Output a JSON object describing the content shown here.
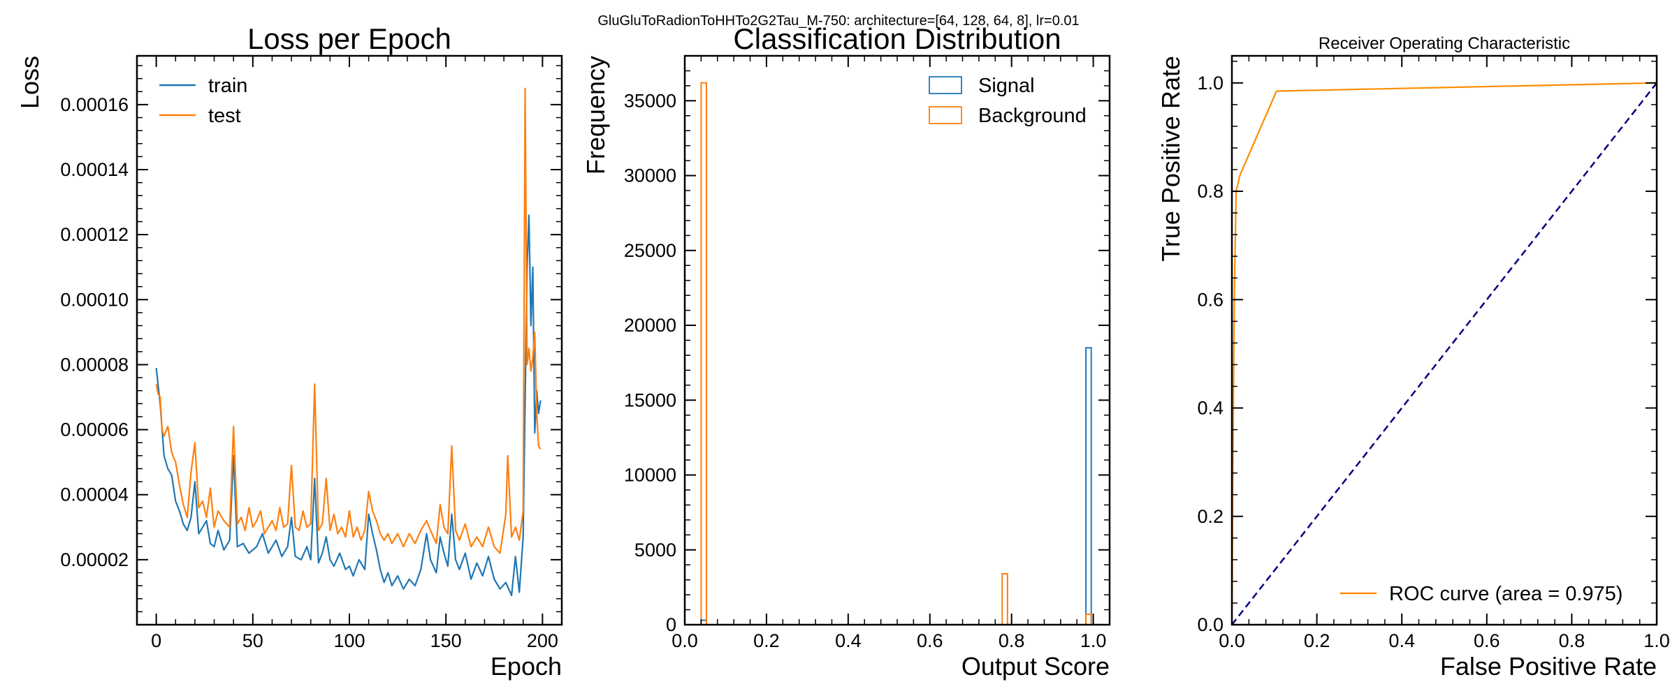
{
  "figure": {
    "suptitle": "GluGluToRadionToHHTo2G2Tau_M-750: architecture=[64, 128, 64, 8], lr=0.01"
  },
  "chart_data": [
    {
      "type": "line",
      "title": "Loss per Epoch",
      "xlabel": "Epoch",
      "ylabel": "Loss",
      "xlim": [
        -10,
        210
      ],
      "ylim": [
        0.0,
        0.000175
      ],
      "xticks": [
        0,
        50,
        100,
        150,
        200
      ],
      "xtick_labels": [
        "0",
        "50",
        "100",
        "150",
        "200"
      ],
      "yticks": [
        2e-05,
        4e-05,
        6e-05,
        8e-05,
        0.0001,
        0.00012,
        0.00014,
        0.00016
      ],
      "ytick_labels": [
        "0.00002",
        "0.00004",
        "0.00006",
        "0.00008",
        "0.00010",
        "0.00012",
        "0.00014",
        "0.00016"
      ],
      "legend": "top-left",
      "series": [
        {
          "name": "train",
          "color": "#1f77b4",
          "points": [
            [
              0,
              7.9e-05
            ],
            [
              2,
              6.8e-05
            ],
            [
              4,
              5.2e-05
            ],
            [
              6,
              4.8e-05
            ],
            [
              8,
              4.6e-05
            ],
            [
              10,
              3.8e-05
            ],
            [
              12,
              3.5e-05
            ],
            [
              14,
              3.1e-05
            ],
            [
              16,
              2.9e-05
            ],
            [
              18,
              3.3e-05
            ],
            [
              20,
              4.4e-05
            ],
            [
              22,
              2.8e-05
            ],
            [
              24,
              3e-05
            ],
            [
              26,
              3.2e-05
            ],
            [
              28,
              2.5e-05
            ],
            [
              30,
              2.4e-05
            ],
            [
              32,
              2.9e-05
            ],
            [
              35,
              2.3e-05
            ],
            [
              38,
              2.6e-05
            ],
            [
              40,
              5.2e-05
            ],
            [
              42,
              2.4e-05
            ],
            [
              45,
              2.5e-05
            ],
            [
              48,
              2.2e-05
            ],
            [
              52,
              2.4e-05
            ],
            [
              55,
              2.8e-05
            ],
            [
              58,
              2.2e-05
            ],
            [
              62,
              2.6e-05
            ],
            [
              65,
              2.1e-05
            ],
            [
              68,
              2.4e-05
            ],
            [
              70,
              3.3e-05
            ],
            [
              72,
              2.1e-05
            ],
            [
              75,
              2e-05
            ],
            [
              78,
              2.4e-05
            ],
            [
              80,
              2e-05
            ],
            [
              82,
              4.5e-05
            ],
            [
              84,
              1.9e-05
            ],
            [
              86,
              2.2e-05
            ],
            [
              88,
              2.7e-05
            ],
            [
              90,
              2e-05
            ],
            [
              92,
              1.8e-05
            ],
            [
              95,
              2.2e-05
            ],
            [
              98,
              1.7e-05
            ],
            [
              100,
              1.8e-05
            ],
            [
              102,
              1.5e-05
            ],
            [
              105,
              2e-05
            ],
            [
              108,
              1.7e-05
            ],
            [
              110,
              3.4e-05
            ],
            [
              112,
              2.8e-05
            ],
            [
              114,
              2.3e-05
            ],
            [
              116,
              1.7e-05
            ],
            [
              118,
              1.3e-05
            ],
            [
              120,
              1.6e-05
            ],
            [
              122,
              1.2e-05
            ],
            [
              125,
              1.5e-05
            ],
            [
              128,
              1.1e-05
            ],
            [
              131,
              1.4e-05
            ],
            [
              134,
              1.2e-05
            ],
            [
              137,
              1.7e-05
            ],
            [
              140,
              2.8e-05
            ],
            [
              142,
              2e-05
            ],
            [
              145,
              1.6e-05
            ],
            [
              147,
              2.7e-05
            ],
            [
              149,
              2.2e-05
            ],
            [
              151,
              1.8e-05
            ],
            [
              153,
              3.4e-05
            ],
            [
              155,
              2e-05
            ],
            [
              157,
              1.7e-05
            ],
            [
              160,
              2.2e-05
            ],
            [
              163,
              1.4e-05
            ],
            [
              166,
              1.9e-05
            ],
            [
              169,
              1.5e-05
            ],
            [
              172,
              2.1e-05
            ],
            [
              175,
              1.4e-05
            ],
            [
              178,
              1.1e-05
            ],
            [
              181,
              1.3e-05
            ],
            [
              184,
              9e-06
            ],
            [
              186,
              2.1e-05
            ],
            [
              188,
              1e-05
            ],
            [
              190,
              2.7e-05
            ],
            [
              192,
              0.00011
            ],
            [
              193,
              0.000126
            ],
            [
              194,
              9.2e-05
            ],
            [
              195,
              0.00011
            ],
            [
              196,
              5.9e-05
            ],
            [
              197,
              7.2e-05
            ],
            [
              198,
              6.5e-05
            ],
            [
              199,
              6.9e-05
            ]
          ]
        },
        {
          "name": "test",
          "color": "#ff7f0e",
          "points": [
            [
              0,
              7.4e-05
            ],
            [
              1,
              7.1e-05
            ],
            [
              2,
              7e-05
            ],
            [
              3,
              6e-05
            ],
            [
              4,
              5.8e-05
            ],
            [
              6,
              6.1e-05
            ],
            [
              8,
              5.3e-05
            ],
            [
              10,
              5e-05
            ],
            [
              12,
              4.3e-05
            ],
            [
              14,
              3.7e-05
            ],
            [
              16,
              3.3e-05
            ],
            [
              18,
              4.7e-05
            ],
            [
              20,
              5.6e-05
            ],
            [
              22,
              3.6e-05
            ],
            [
              24,
              3.8e-05
            ],
            [
              26,
              3.3e-05
            ],
            [
              28,
              4.2e-05
            ],
            [
              30,
              3e-05
            ],
            [
              32,
              3.5e-05
            ],
            [
              35,
              3.2e-05
            ],
            [
              38,
              3e-05
            ],
            [
              40,
              6.1e-05
            ],
            [
              42,
              3.1e-05
            ],
            [
              44,
              3.3e-05
            ],
            [
              46,
              2.9e-05
            ],
            [
              48,
              3.6e-05
            ],
            [
              50,
              3e-05
            ],
            [
              52,
              3.2e-05
            ],
            [
              54,
              3.5e-05
            ],
            [
              56,
              2.8e-05
            ],
            [
              58,
              3e-05
            ],
            [
              60,
              3.2e-05
            ],
            [
              62,
              2.9e-05
            ],
            [
              64,
              3.6e-05
            ],
            [
              66,
              3e-05
            ],
            [
              68,
              3.1e-05
            ],
            [
              70,
              4.9e-05
            ],
            [
              72,
              3e-05
            ],
            [
              74,
              2.9e-05
            ],
            [
              76,
              3.5e-05
            ],
            [
              78,
              3e-05
            ],
            [
              80,
              3.1e-05
            ],
            [
              82,
              7.4e-05
            ],
            [
              84,
              2.9e-05
            ],
            [
              86,
              3.1e-05
            ],
            [
              88,
              4.5e-05
            ],
            [
              90,
              2.9e-05
            ],
            [
              92,
              3.4e-05
            ],
            [
              94,
              2.8e-05
            ],
            [
              96,
              3e-05
            ],
            [
              98,
              2.7e-05
            ],
            [
              100,
              3.5e-05
            ],
            [
              102,
              2.7e-05
            ],
            [
              104,
              3e-05
            ],
            [
              106,
              2.6e-05
            ],
            [
              108,
              2.9e-05
            ],
            [
              110,
              4.1e-05
            ],
            [
              112,
              3.5e-05
            ],
            [
              114,
              3.2e-05
            ],
            [
              116,
              2.8e-05
            ],
            [
              118,
              2.6e-05
            ],
            [
              120,
              2.8e-05
            ],
            [
              122,
              2.5e-05
            ],
            [
              125,
              2.8e-05
            ],
            [
              128,
              2.4e-05
            ],
            [
              131,
              2.8e-05
            ],
            [
              134,
              2.5e-05
            ],
            [
              137,
              2.9e-05
            ],
            [
              140,
              3.2e-05
            ],
            [
              142,
              2.9e-05
            ],
            [
              145,
              2.5e-05
            ],
            [
              147,
              3.7e-05
            ],
            [
              149,
              3e-05
            ],
            [
              151,
              2.8e-05
            ],
            [
              153,
              5.5e-05
            ],
            [
              155,
              2.9e-05
            ],
            [
              157,
              2.6e-05
            ],
            [
              160,
              3.1e-05
            ],
            [
              163,
              2.4e-05
            ],
            [
              166,
              2.7e-05
            ],
            [
              169,
              2.4e-05
            ],
            [
              172,
              3e-05
            ],
            [
              175,
              2.4e-05
            ],
            [
              178,
              2.2e-05
            ],
            [
              181,
              3.4e-05
            ],
            [
              182,
              5.2e-05
            ],
            [
              184,
              2.7e-05
            ],
            [
              186,
              3e-05
            ],
            [
              188,
              2.6e-05
            ],
            [
              190,
              3.5e-05
            ],
            [
              191,
              0.000165
            ],
            [
              192,
              8e-05
            ],
            [
              193,
              8.5e-05
            ],
            [
              194,
              7.8e-05
            ],
            [
              195,
              8.2e-05
            ],
            [
              196,
              9e-05
            ],
            [
              197,
              6.5e-05
            ],
            [
              198,
              5.5e-05
            ],
            [
              199,
              5.4e-05
            ]
          ]
        }
      ]
    },
    {
      "type": "histogram",
      "title": "Classification Distribution",
      "xlabel": "Output Score",
      "ylabel": "Frequency",
      "xlim": [
        0.0,
        1.04
      ],
      "ylim": [
        0,
        38000
      ],
      "xticks": [
        0.0,
        0.2,
        0.4,
        0.6,
        0.8,
        1.0
      ],
      "xtick_labels": [
        "0.0",
        "0.2",
        "0.4",
        "0.6",
        "0.8",
        "1.0"
      ],
      "yticks": [
        0,
        5000,
        10000,
        15000,
        20000,
        25000,
        30000,
        35000
      ],
      "ytick_labels": [
        "0",
        "5000",
        "10000",
        "15000",
        "20000",
        "25000",
        "30000",
        "35000"
      ],
      "legend": "top-right",
      "series": [
        {
          "name": "Signal",
          "color": "#1f77b4",
          "bins": [
            [
              0.04,
              0.053,
              300
            ],
            [
              0.982,
              0.995,
              18500
            ]
          ]
        },
        {
          "name": "Background",
          "color": "#ff7f0e",
          "bins": [
            [
              0.04,
              0.053,
              36200
            ],
            [
              0.777,
              0.79,
              3400
            ],
            [
              0.982,
              0.995,
              700
            ]
          ]
        }
      ]
    },
    {
      "type": "line",
      "title": "Receiver Operating Characteristic",
      "xlabel": "False Positive Rate",
      "ylabel": "True Positive Rate",
      "xlim": [
        0.0,
        1.0
      ],
      "ylim": [
        0.0,
        1.05
      ],
      "xticks": [
        0.0,
        0.2,
        0.4,
        0.6,
        0.8,
        1.0
      ],
      "xtick_labels": [
        "0.0",
        "0.2",
        "0.4",
        "0.6",
        "0.8",
        "1.0"
      ],
      "yticks": [
        0.0,
        0.2,
        0.4,
        0.6,
        0.8,
        1.0
      ],
      "ytick_labels": [
        "0.0",
        "0.2",
        "0.4",
        "0.6",
        "0.8",
        "1.0"
      ],
      "legend": "bottom-right",
      "series": [
        {
          "name": "ROC curve (area = 0.975)",
          "color": "#ff8c00",
          "points": [
            [
              0.0,
              0.0
            ],
            [
              0.001,
              0.1
            ],
            [
              0.002,
              0.25
            ],
            [
              0.004,
              0.45
            ],
            [
              0.006,
              0.62
            ],
            [
              0.01,
              0.8
            ],
            [
              0.019,
              0.83
            ],
            [
              0.105,
              0.985
            ],
            [
              1.0,
              1.0
            ]
          ]
        },
        {
          "name": "",
          "color": "#000080",
          "dashed": true,
          "points": [
            [
              0.0,
              0.0
            ],
            [
              1.0,
              1.0
            ]
          ]
        }
      ]
    }
  ]
}
